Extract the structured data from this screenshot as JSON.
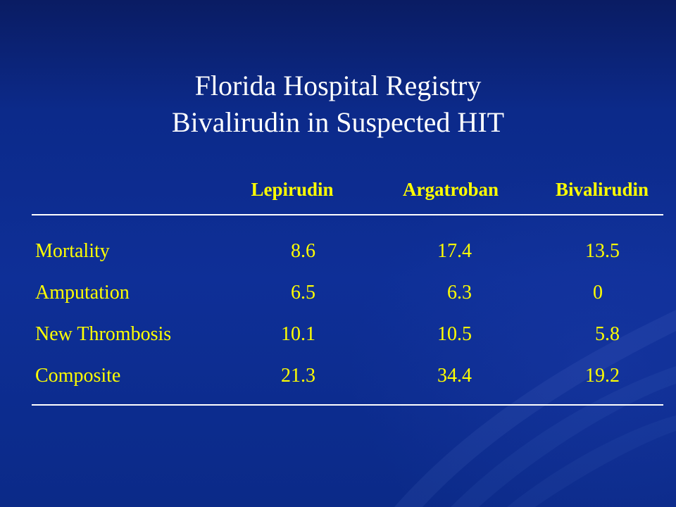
{
  "slide": {
    "title_line1": "Florida Hospital Registry",
    "title_line2": "Bivalirudin in Suspected HIT",
    "text_color": "#ffff00",
    "title_color": "#ffffff",
    "background_color": "#0e2f97"
  },
  "table": {
    "columns": [
      "Lepirudin",
      "Argatroban",
      "Bivalirudin"
    ],
    "rows": [
      {
        "label": "Mortality",
        "values": [
          "8.6",
          "17.4",
          "13.5"
        ]
      },
      {
        "label": "Amputation",
        "values": [
          "6.5",
          "6.3",
          "0"
        ]
      },
      {
        "label": "New Thrombosis",
        "values": [
          "10.1",
          "10.5",
          "5.8"
        ]
      },
      {
        "label": "Composite",
        "values": [
          "21.3",
          "34.4",
          "19.2"
        ]
      }
    ]
  }
}
